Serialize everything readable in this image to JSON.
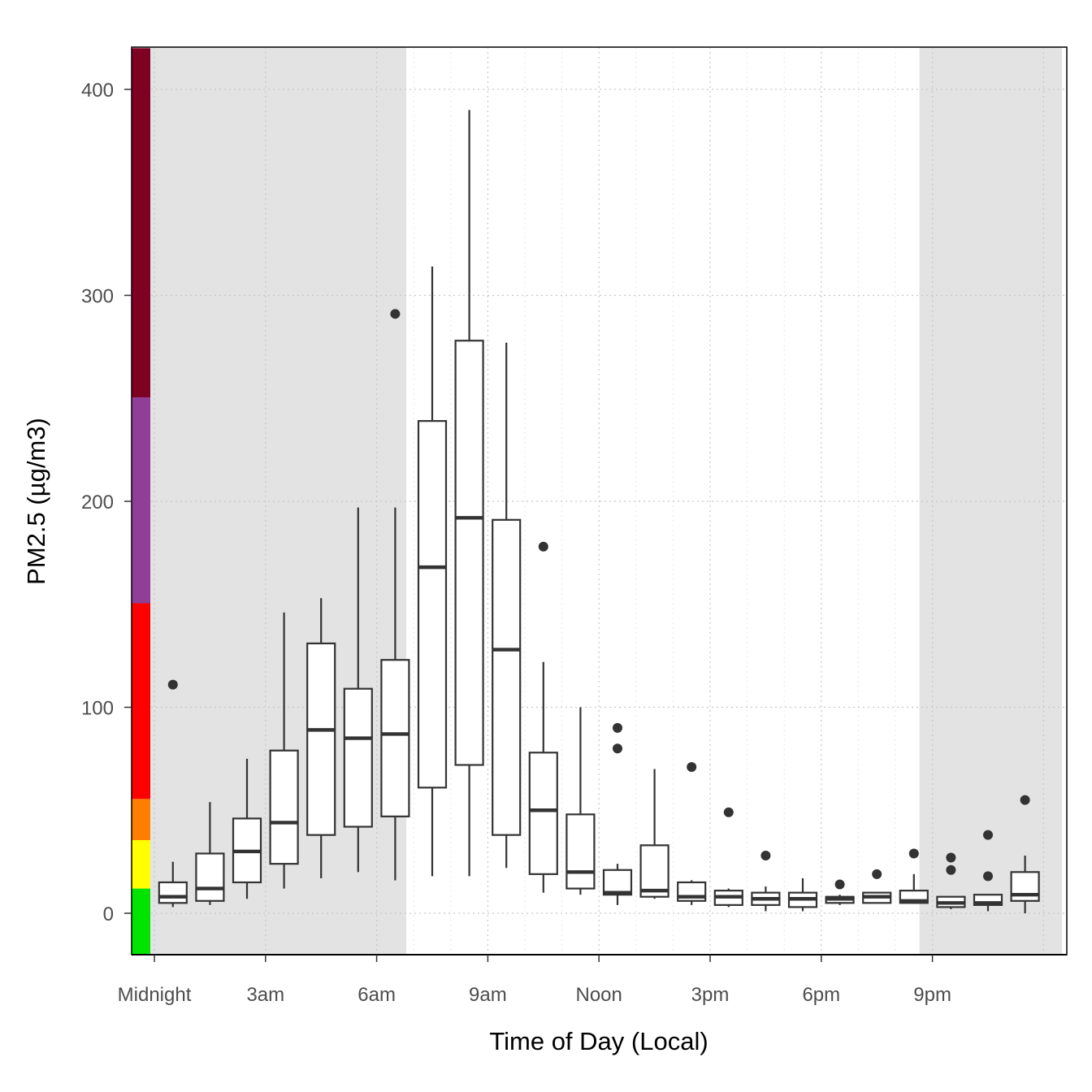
{
  "chart_data": {
    "type": "box",
    "xlabel": "Time of Day (Local)",
    "ylabel": "PM2.5 (µg/m3)",
    "xlim": [
      -0.7,
      24.5
    ],
    "ylim": [
      -20,
      420
    ],
    "x_ticks": [
      {
        "value": 0,
        "label": "Midnight"
      },
      {
        "value": 3,
        "label": "3am"
      },
      {
        "value": 6,
        "label": "6am"
      },
      {
        "value": 9,
        "label": "9am"
      },
      {
        "value": 12,
        "label": "Noon"
      },
      {
        "value": 15,
        "label": "3pm"
      },
      {
        "value": 18,
        "label": "6pm"
      },
      {
        "value": 21,
        "label": "9pm"
      }
    ],
    "y_ticks": [
      0,
      100,
      200,
      300,
      400
    ],
    "grid": true,
    "night_shading": [
      [
        -0.7,
        6.8
      ],
      [
        20.65,
        24.5
      ]
    ],
    "aqi_bands": [
      {
        "from": -20,
        "to": 12,
        "color": "#00e400"
      },
      {
        "from": 12,
        "to": 35.5,
        "color": "#ffff00"
      },
      {
        "from": 35.5,
        "to": 55.5,
        "color": "#ff7e00"
      },
      {
        "from": 55.5,
        "to": 150.5,
        "color": "#ff0000"
      },
      {
        "from": 150.5,
        "to": 250.5,
        "color": "#8f3f97"
      },
      {
        "from": 250.5,
        "to": 420,
        "color": "#7e0023"
      }
    ],
    "boxes": [
      {
        "x": 0.5,
        "min": 3,
        "q1": 5,
        "median": 8,
        "q3": 15,
        "max": 25,
        "outliers": [
          111
        ]
      },
      {
        "x": 1.5,
        "min": 4,
        "q1": 6,
        "median": 12,
        "q3": 29,
        "max": 54,
        "outliers": []
      },
      {
        "x": 2.5,
        "min": 7,
        "q1": 15,
        "median": 30,
        "q3": 46,
        "max": 75,
        "outliers": []
      },
      {
        "x": 3.5,
        "min": 12,
        "q1": 24,
        "median": 44,
        "q3": 79,
        "max": 146,
        "outliers": []
      },
      {
        "x": 4.5,
        "min": 17,
        "q1": 38,
        "median": 89,
        "q3": 131,
        "max": 153,
        "outliers": []
      },
      {
        "x": 5.5,
        "min": 20,
        "q1": 42,
        "median": 85,
        "q3": 109,
        "max": 197,
        "outliers": []
      },
      {
        "x": 6.5,
        "min": 16,
        "q1": 47,
        "median": 87,
        "q3": 123,
        "max": 197,
        "outliers": [
          291
        ]
      },
      {
        "x": 7.5,
        "min": 18,
        "q1": 61,
        "median": 168,
        "q3": 239,
        "max": 314,
        "outliers": []
      },
      {
        "x": 8.5,
        "min": 18,
        "q1": 72,
        "median": 192,
        "q3": 278,
        "max": 390,
        "outliers": []
      },
      {
        "x": 9.5,
        "min": 22,
        "q1": 38,
        "median": 128,
        "q3": 191,
        "max": 277,
        "outliers": []
      },
      {
        "x": 10.5,
        "min": 10,
        "q1": 19,
        "median": 50,
        "q3": 78,
        "max": 122,
        "outliers": [
          178
        ]
      },
      {
        "x": 11.5,
        "min": 9,
        "q1": 12,
        "median": 20,
        "q3": 48,
        "max": 100,
        "outliers": []
      },
      {
        "x": 12.5,
        "min": 4,
        "q1": 9,
        "median": 10,
        "q3": 21,
        "max": 24,
        "outliers": [
          90,
          80
        ]
      },
      {
        "x": 13.5,
        "min": 7,
        "q1": 8,
        "median": 11,
        "q3": 33,
        "max": 70,
        "outliers": []
      },
      {
        "x": 14.5,
        "min": 4,
        "q1": 6,
        "median": 8,
        "q3": 15,
        "max": 16,
        "outliers": [
          71
        ]
      },
      {
        "x": 15.5,
        "min": 3,
        "q1": 4,
        "median": 8,
        "q3": 11,
        "max": 12,
        "outliers": [
          49
        ]
      },
      {
        "x": 16.5,
        "min": 1,
        "q1": 4,
        "median": 7,
        "q3": 10,
        "max": 13,
        "outliers": [
          28
        ]
      },
      {
        "x": 17.5,
        "min": 1,
        "q1": 3,
        "median": 7,
        "q3": 10,
        "max": 17,
        "outliers": []
      },
      {
        "x": 18.5,
        "min": 4,
        "q1": 5,
        "median": 7,
        "q3": 8,
        "max": 9,
        "outliers": [
          14
        ]
      },
      {
        "x": 19.5,
        "min": 5,
        "q1": 5,
        "median": 8,
        "q3": 10,
        "max": 10,
        "outliers": [
          19
        ]
      },
      {
        "x": 20.5,
        "min": 5,
        "q1": 5,
        "median": 6,
        "q3": 11,
        "max": 19,
        "outliers": [
          29
        ]
      },
      {
        "x": 21.5,
        "min": 2,
        "q1": 3,
        "median": 5,
        "q3": 8,
        "max": 8,
        "outliers": [
          27,
          21
        ]
      },
      {
        "x": 22.5,
        "min": 1,
        "q1": 4,
        "median": 5,
        "q3": 9,
        "max": 9,
        "outliers": [
          38,
          18
        ]
      },
      {
        "x": 23.5,
        "min": 0,
        "q1": 6,
        "median": 9,
        "q3": 20,
        "max": 28,
        "outliers": [
          55
        ]
      }
    ]
  }
}
